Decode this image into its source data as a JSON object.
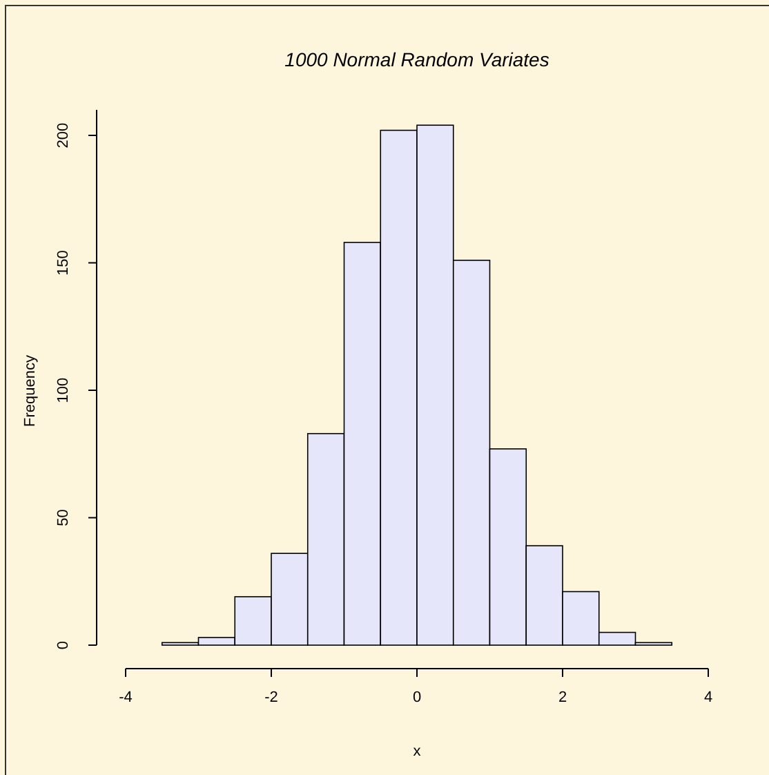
{
  "chart_data": {
    "type": "histogram",
    "title": "1000 Normal Random Variates",
    "xlabel": "x",
    "ylabel": "Frequency",
    "bins": [
      -3.5,
      -3,
      -2.5,
      -2,
      -1.5,
      -1,
      -0.5,
      0,
      0.5,
      1,
      1.5,
      2,
      2.5,
      3,
      3.5
    ],
    "values": [
      1,
      3,
      19,
      36,
      83,
      158,
      202,
      204,
      151,
      77,
      39,
      21,
      5,
      1
    ],
    "color": "#e6e6fa",
    "xlim": [
      -4,
      4
    ],
    "xticks": [
      -4,
      -2,
      0,
      2,
      4
    ],
    "ylim": [
      0,
      210
    ],
    "yticks": [
      0,
      50,
      100,
      150,
      200
    ],
    "grid": false
  }
}
